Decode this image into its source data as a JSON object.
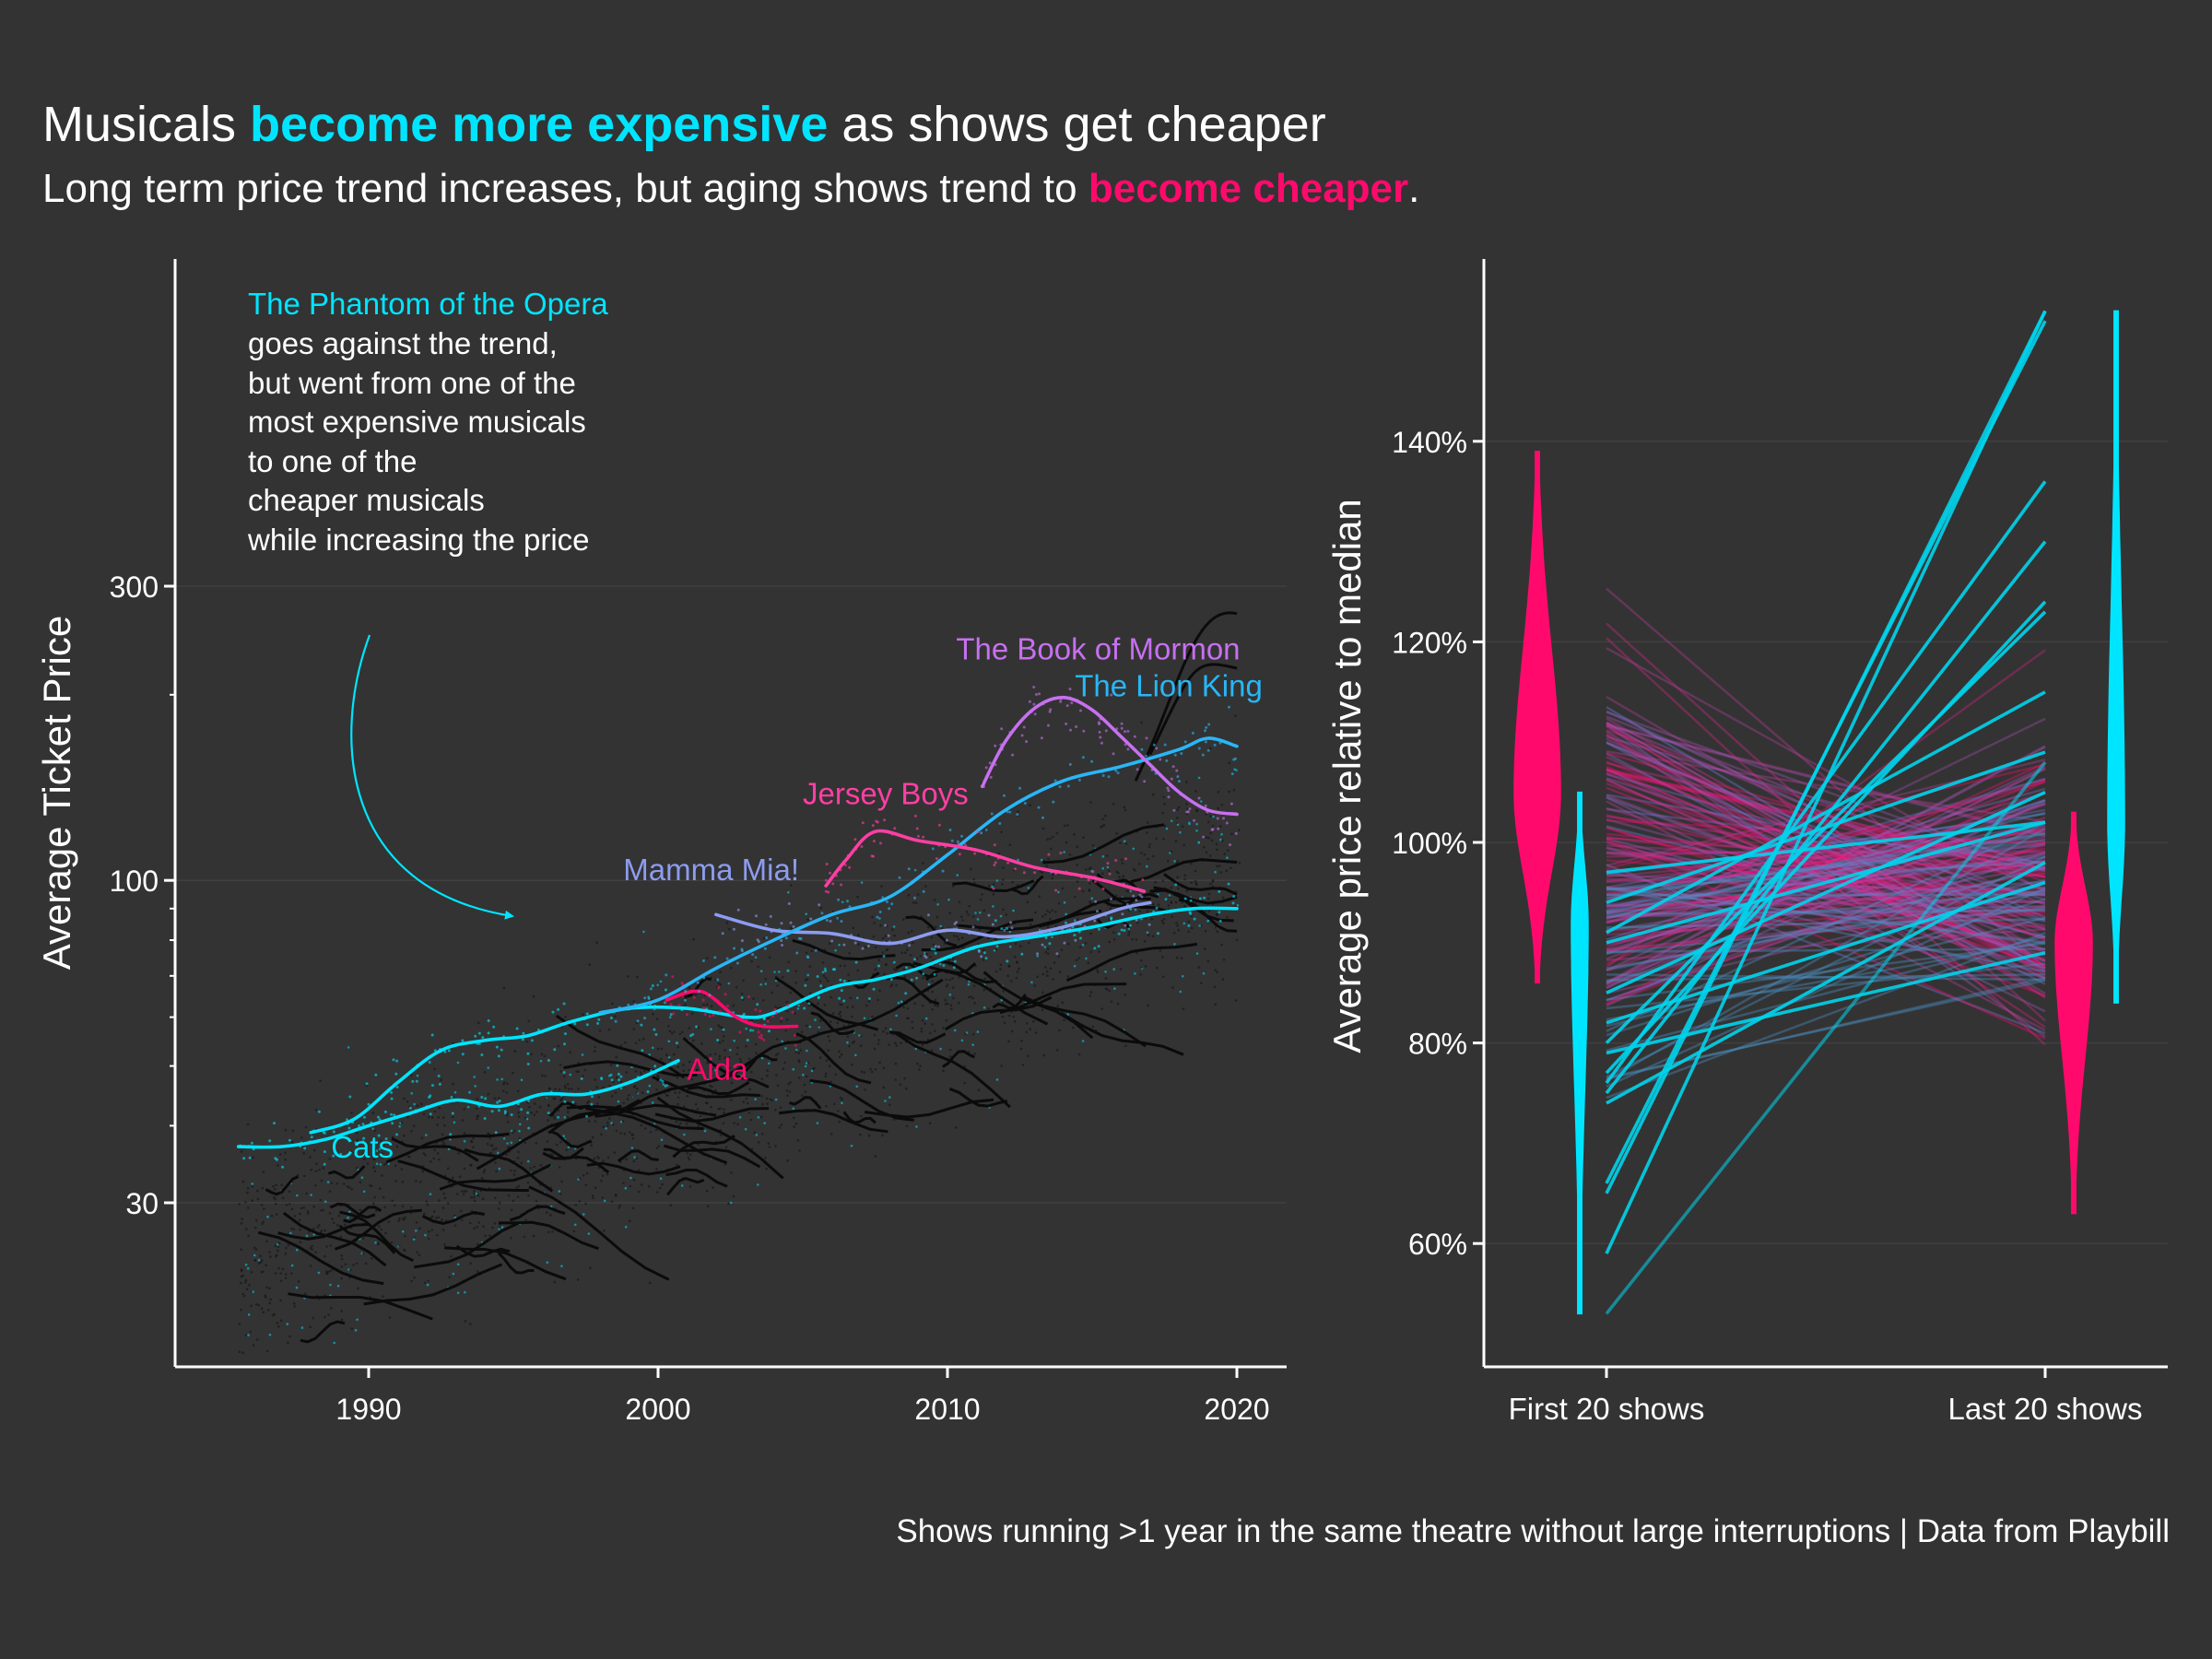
{
  "header": {
    "title_pre": "Musicals ",
    "title_emph": "become more expensive",
    "title_post": " as shows get cheaper",
    "subtitle_pre": "Long term price trend increases, but aging shows trend to ",
    "subtitle_emph": "become cheaper",
    "subtitle_post": "."
  },
  "caption": "Shows running >1 year in the same theatre without large interruptions | Data from Playbill",
  "colors": {
    "background": "#333333",
    "cyan": "#00e5ff",
    "pink": "#ff0a6c",
    "blue": "#29b6f6",
    "purple": "#c770f0",
    "lavender": "#8c9cf0",
    "magenta": "#ff3fa4"
  },
  "annotation": {
    "show": "The Phantom of the Opera",
    "lines": [
      "goes against the trend,",
      "but went from one of the",
      "most expensive musicals",
      "to one of the",
      "cheaper musicals",
      "while increasing the price"
    ]
  },
  "chart_data": [
    {
      "type": "line",
      "ylabel": "Average Ticket Price",
      "xlabel": "",
      "scale_y": "log",
      "xlim": [
        1983,
        2022
      ],
      "ylim": [
        17,
        300
      ],
      "x_ticks": [
        1990,
        2000,
        2010,
        2020
      ],
      "x_tick_labels": [
        "1990",
        "2000",
        "2010",
        "2020"
      ],
      "y_ticks": [
        30,
        100,
        300
      ],
      "y_tick_labels": [
        "30",
        "100",
        "300"
      ],
      "grid": "horizontal",
      "series": [
        {
          "name": "The Phantom of the Opera",
          "color": "#00e5ff",
          "x": [
            1988.0,
            1989.5,
            1991,
            1992.5,
            1994,
            1995.5,
            1997,
            1999,
            2001,
            2003,
            2004,
            2006,
            2007.5,
            2009,
            2011,
            2013,
            2015,
            2017,
            2018.5,
            2020
          ],
          "y": [
            39,
            41,
            47,
            53,
            55,
            56,
            59,
            62,
            62,
            60,
            61,
            67,
            69,
            72,
            78,
            81,
            84,
            88,
            90,
            90
          ]
        },
        {
          "name": "Cats",
          "color": "#00e5ff",
          "x": [
            1985.5,
            1987,
            1988.5,
            1990,
            1991.5,
            1993,
            1994.5,
            1996,
            1997.5,
            1999,
            2000.7
          ],
          "y": [
            37,
            37,
            38,
            40,
            42,
            44,
            43,
            45,
            45,
            47,
            51
          ]
        },
        {
          "name": "Aida",
          "color": "#ff0a6c",
          "x": [
            2000.3,
            2001.5,
            2002.7,
            2003.6,
            2004.8
          ],
          "y": [
            64,
            66,
            60,
            58,
            58
          ]
        },
        {
          "name": "Mamma Mia!",
          "color": "#8c9cf0",
          "x": [
            2002,
            2004,
            2006,
            2008,
            2010,
            2012,
            2014,
            2016,
            2017
          ],
          "y": [
            88,
            83,
            82,
            79,
            83,
            81,
            84,
            90,
            92
          ]
        },
        {
          "name": "The Lion King",
          "color": "#29b6f6",
          "x": [
            1998,
            2000,
            2002,
            2004,
            2006,
            2008,
            2010,
            2012,
            2014,
            2016,
            2018,
            2019,
            2020
          ],
          "y": [
            61,
            64,
            72,
            80,
            88,
            94,
            110,
            130,
            145,
            153,
            163,
            170,
            165
          ]
        },
        {
          "name": "Jersey Boys",
          "color": "#ff3fa4",
          "x": [
            2005.8,
            2006.5,
            2007.5,
            2009,
            2011,
            2013,
            2015,
            2016.8
          ],
          "y": [
            98,
            108,
            120,
            116,
            112,
            105,
            101,
            96
          ]
        },
        {
          "name": "The Book of Mormon",
          "color": "#c770f0",
          "x": [
            2011.2,
            2012,
            2013,
            2014,
            2015,
            2016,
            2017,
            2018,
            2019,
            2020
          ],
          "y": [
            142,
            168,
            190,
            198,
            189,
            171,
            154,
            139,
            130,
            128
          ]
        }
      ],
      "labels": [
        {
          "text": "The Book of Mormon",
          "x": 2010.3,
          "y": 228,
          "color": "#c770f0"
        },
        {
          "text": "The Lion King",
          "x": 2014.4,
          "y": 199,
          "color": "#29b6f6"
        },
        {
          "text": "Jersey Boys",
          "x": 2005,
          "y": 133,
          "color": "#ff3fa4"
        },
        {
          "text": "Mamma Mia!",
          "x": 1998.8,
          "y": 100,
          "color": "#8c9cf0"
        },
        {
          "text": "Aida",
          "x": 2001,
          "y": 47.5,
          "color": "#ff0a6c"
        },
        {
          "text": "Cats",
          "x": 1988.7,
          "y": 35.5,
          "color": "#00e5ff"
        }
      ]
    },
    {
      "type": "line",
      "ylabel": "Average price relative to median",
      "xlabel": "",
      "categories": [
        "First 20 shows",
        "Last 20 shows"
      ],
      "ylim": [
        0.47,
        1.57
      ],
      "y_ticks": [
        0.6,
        0.8,
        1.0,
        1.2,
        1.4
      ],
      "y_tick_labels": [
        "60%",
        "80%",
        "100%",
        "120%",
        "140%"
      ],
      "grid": "horizontal",
      "highlighted_shows_first_last": [
        [
          0.59,
          1.53
        ],
        [
          0.65,
          1.53
        ],
        [
          0.66,
          1.52
        ],
        [
          0.76,
          1.36
        ],
        [
          0.75,
          1.3
        ],
        [
          0.77,
          1.24
        ],
        [
          0.8,
          1.23
        ],
        [
          0.91,
          1.15
        ],
        [
          0.94,
          1.09
        ],
        [
          0.53,
          1.08
        ],
        [
          0.85,
          1.05
        ],
        [
          0.97,
          1.02
        ],
        [
          0.9,
          1.02
        ],
        [
          0.74,
          0.98
        ],
        [
          0.82,
          0.96
        ],
        [
          0.79,
          0.89
        ]
      ],
      "violins": [
        {
          "group": "First 20 shows",
          "color": "#ff0a6c",
          "range": [
            0.86,
            1.39
          ],
          "mode": 1.05
        },
        {
          "group": "First 20 shows",
          "color": "#00e5ff",
          "range": [
            0.53,
            1.05
          ],
          "mode": 0.92
        },
        {
          "group": "Last 20 shows",
          "color": "#ff0a6c",
          "range": [
            0.63,
            1.03
          ],
          "mode": 0.9
        },
        {
          "group": "Last 20 shows",
          "color": "#00e5ff",
          "range": [
            0.84,
            1.53
          ],
          "mode": 1.02
        }
      ]
    }
  ]
}
